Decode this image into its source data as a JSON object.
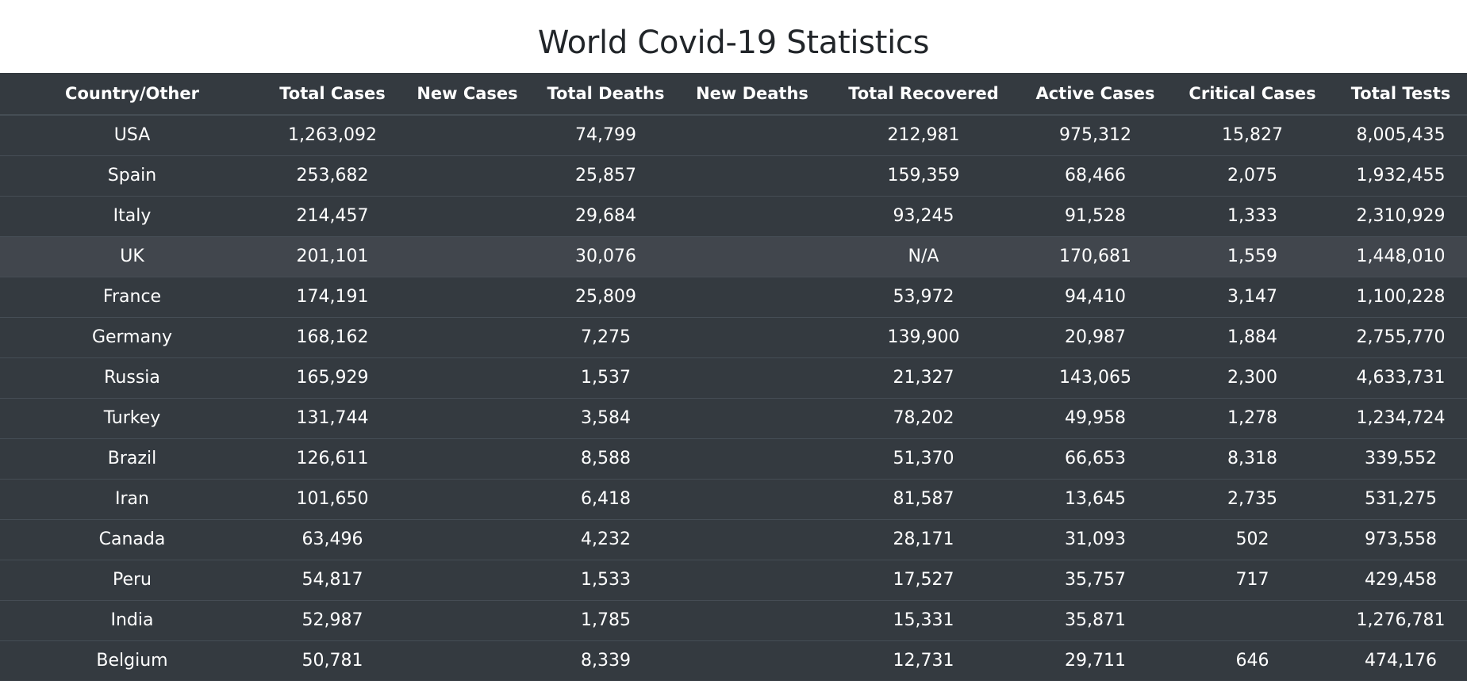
{
  "title": "World Covid-19 Statistics",
  "columns": [
    "Country/Other",
    "Total Cases",
    "New Cases",
    "Total Deaths",
    "New Deaths",
    "Total Recovered",
    "Active Cases",
    "Critical Cases",
    "Total Tests"
  ],
  "rows": [
    [
      "USA",
      "1,263,092",
      "",
      "74,799",
      "",
      "212,981",
      "975,312",
      "15,827",
      "8,005,435"
    ],
    [
      "Spain",
      "253,682",
      "",
      "25,857",
      "",
      "159,359",
      "68,466",
      "2,075",
      "1,932,455"
    ],
    [
      "Italy",
      "214,457",
      "",
      "29,684",
      "",
      "93,245",
      "91,528",
      "1,333",
      "2,310,929"
    ],
    [
      "UK",
      "201,101",
      "",
      "30,076",
      "",
      "N/A",
      "170,681",
      "1,559",
      "1,448,010"
    ],
    [
      "France",
      "174,191",
      "",
      "25,809",
      "",
      "53,972",
      "94,410",
      "3,147",
      "1,100,228"
    ],
    [
      "Germany",
      "168,162",
      "",
      "7,275",
      "",
      "139,900",
      "20,987",
      "1,884",
      "2,755,770"
    ],
    [
      "Russia",
      "165,929",
      "",
      "1,537",
      "",
      "21,327",
      "143,065",
      "2,300",
      "4,633,731"
    ],
    [
      "Turkey",
      "131,744",
      "",
      "3,584",
      "",
      "78,202",
      "49,958",
      "1,278",
      "1,234,724"
    ],
    [
      "Brazil",
      "126,611",
      "",
      "8,588",
      "",
      "51,370",
      "66,653",
      "8,318",
      "339,552"
    ],
    [
      "Iran",
      "101,650",
      "",
      "6,418",
      "",
      "81,587",
      "13,645",
      "2,735",
      "531,275"
    ],
    [
      "Canada",
      "63,496",
      "",
      "4,232",
      "",
      "28,171",
      "31,093",
      "502",
      "973,558"
    ],
    [
      "Peru",
      "54,817",
      "",
      "1,533",
      "",
      "17,527",
      "35,757",
      "717",
      "429,458"
    ],
    [
      "India",
      "52,987",
      "",
      "1,785",
      "",
      "15,331",
      "35,871",
      "",
      "1,276,781"
    ],
    [
      "Belgium",
      "50,781",
      "",
      "8,339",
      "",
      "12,731",
      "29,711",
      "646",
      "474,176"
    ]
  ],
  "highlighted_row": 3,
  "colors": {
    "table_background": "#343a40",
    "highlight_background": "#41464d",
    "border": "#454d55",
    "title_text": "#212529"
  }
}
